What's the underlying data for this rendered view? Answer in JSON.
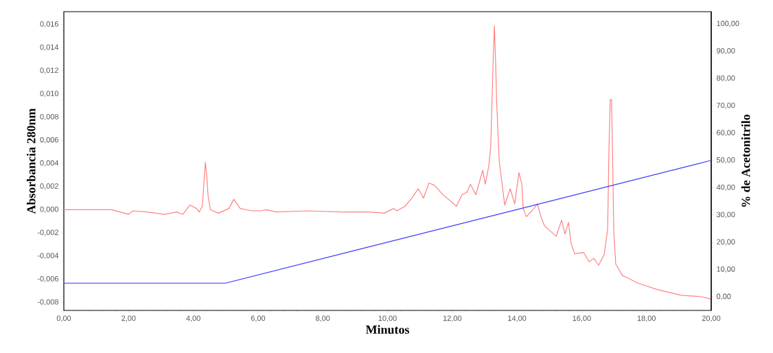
{
  "chart_data": {
    "type": "line",
    "xlabel": "Minutos",
    "ylabel": "Absorbancia 280nm",
    "y2label": "% de Acetonitrilo",
    "xlim": [
      0,
      20
    ],
    "ylim": [
      -0.0087,
      0.0171
    ],
    "y2lim": [
      -5,
      104.5
    ],
    "xticks": [
      {
        "value": 0,
        "label": "0,00"
      },
      {
        "value": 2,
        "label": "2,00"
      },
      {
        "value": 4,
        "label": "4,00"
      },
      {
        "value": 6,
        "label": "6,00"
      },
      {
        "value": 8,
        "label": "8,00"
      },
      {
        "value": 10,
        "label": "10,00"
      },
      {
        "value": 12,
        "label": "12,00"
      },
      {
        "value": 14,
        "label": "14,00"
      },
      {
        "value": 16,
        "label": "16,00"
      },
      {
        "value": 18,
        "label": "18,00"
      },
      {
        "value": 20,
        "label": "20,00"
      }
    ],
    "yticks": [
      {
        "value": -0.008,
        "label": "-0,008"
      },
      {
        "value": -0.006,
        "label": "-0,006"
      },
      {
        "value": -0.004,
        "label": "-0,004"
      },
      {
        "value": -0.002,
        "label": "-0,002"
      },
      {
        "value": 0,
        "label": "0,000"
      },
      {
        "value": 0.002,
        "label": "0,002"
      },
      {
        "value": 0.004,
        "label": "0,004"
      },
      {
        "value": 0.006,
        "label": "0,006"
      },
      {
        "value": 0.008,
        "label": "0,008"
      },
      {
        "value": 0.01,
        "label": "0,010"
      },
      {
        "value": 0.012,
        "label": "0,012"
      },
      {
        "value": 0.014,
        "label": "0,014"
      },
      {
        "value": 0.016,
        "label": "0,016"
      }
    ],
    "y2ticks": [
      {
        "value": 0,
        "label": "0,00"
      },
      {
        "value": 10,
        "label": "10,00"
      },
      {
        "value": 20,
        "label": "20,00"
      },
      {
        "value": 30,
        "label": "30,00"
      },
      {
        "value": 40,
        "label": "40,00"
      },
      {
        "value": 50,
        "label": "50,00"
      },
      {
        "value": 60,
        "label": "60,00"
      },
      {
        "value": 70,
        "label": "70,00"
      },
      {
        "value": 80,
        "label": "80,00"
      },
      {
        "value": 90,
        "label": "90,00"
      },
      {
        "value": 100,
        "label": "100,00"
      }
    ],
    "grid": false,
    "marker": "none",
    "line_style": "solid",
    "series": [
      {
        "color": "#ff8080",
        "x": [
          0,
          0.85,
          1.48,
          2.0,
          2.14,
          2.55,
          3.12,
          3.47,
          3.68,
          3.89,
          4.1,
          4.18,
          4.28,
          4.37,
          4.41,
          4.46,
          4.53,
          4.77,
          5.1,
          5.25,
          5.45,
          5.8,
          6.09,
          6.26,
          6.57,
          7.5,
          8.57,
          9.42,
          9.9,
          10.19,
          10.29,
          10.54,
          10.75,
          10.95,
          11.11,
          11.28,
          11.45,
          11.71,
          12.13,
          12.3,
          12.45,
          12.56,
          12.73,
          12.94,
          13.02,
          13.13,
          13.19,
          13.26,
          13.3,
          13.34,
          13.37,
          13.45,
          13.62,
          13.79,
          13.93,
          14.06,
          14.15,
          14.19,
          14.29,
          14.46,
          14.63,
          14.74,
          14.85,
          15.21,
          15.38,
          15.48,
          15.59,
          15.67,
          15.78,
          16.06,
          16.23,
          16.37,
          16.52,
          16.69,
          16.8,
          16.84,
          16.88,
          16.92,
          16.95,
          16.99,
          17.05,
          17.26,
          17.43,
          17.69,
          18.33,
          19.09,
          19.66,
          19.98
        ],
        "values": [
          0,
          0,
          0,
          -0.0004,
          -0.0001,
          -0.0002,
          -0.0004,
          -0.0002,
          -0.0004,
          0.0004,
          0.0001,
          -0.0002,
          0.0003,
          0.0041,
          0.003,
          0.0011,
          0,
          -0.0003,
          0.0001,
          0.0009,
          0.0001,
          -0.0001,
          -0.0001,
          0,
          -0.0002,
          -0.0001,
          -0.0002,
          -0.0002,
          -0.0003,
          0.0001,
          -0.0001,
          0.0003,
          0.001,
          0.0018,
          0.001,
          0.0023,
          0.0021,
          0.0013,
          0.0003,
          0.0013,
          0.0015,
          0.0022,
          0.0013,
          0.0034,
          0.0022,
          0.0038,
          0.0056,
          0.0126,
          0.0159,
          0.0127,
          0.0094,
          0.0042,
          0.0004,
          0.0018,
          0.0005,
          0.0032,
          0.0022,
          0.0001,
          -0.0006,
          -0.0001,
          0.0005,
          -0.0006,
          -0.0014,
          -0.0023,
          -0.0009,
          -0.0021,
          -0.0011,
          -0.0029,
          -0.0038,
          -0.0037,
          -0.0045,
          -0.0042,
          -0.0048,
          -0.0039,
          -0.0017,
          0.0051,
          0.0095,
          0.0095,
          0.005,
          -0.0019,
          -0.0047,
          -0.0057,
          -0.0059,
          -0.0063,
          -0.0069,
          -0.0074,
          -0.0075,
          -0.0077
        ]
      },
      {
        "color": "#3333ff",
        "axis": "y2",
        "x": [
          0,
          5,
          20
        ],
        "values": [
          5,
          5,
          50
        ]
      }
    ]
  }
}
